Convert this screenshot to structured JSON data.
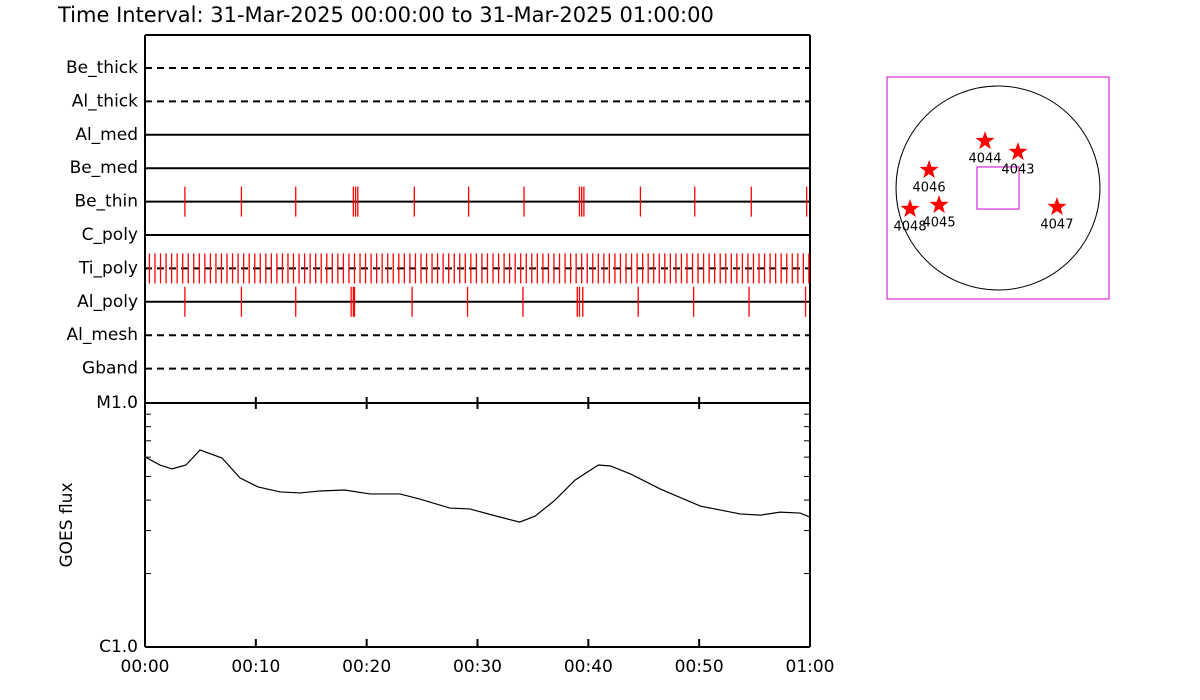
{
  "title": "Time Interval: 31-Mar-2025 00:00:00 to 31-Mar-2025 01:00:00",
  "chart_data": [
    {
      "type": "timeline",
      "categories": [
        "Be_thick",
        "Al_thick",
        "Al_med",
        "Be_med",
        "Be_thin",
        "C_poly",
        "Ti_poly",
        "Al_poly",
        "Al_mesh",
        "Gband"
      ],
      "dashed": [
        true,
        true,
        false,
        false,
        false,
        false,
        true,
        false,
        true,
        true
      ],
      "color": "#ff0000",
      "xlim": [
        0,
        60
      ],
      "events": [
        [],
        [],
        [],
        [],
        [
          3.6,
          8.7,
          13.6,
          18.8,
          19.0,
          19.2,
          24.3,
          29.2,
          34.2,
          39.2,
          39.4,
          39.6,
          44.7,
          49.6,
          54.7,
          59.7
        ],
        [],
        [
          0.4,
          0.9,
          1.4,
          1.9,
          2.4,
          2.9,
          3.4,
          3.9,
          4.4,
          4.9,
          5.4,
          5.9,
          6.4,
          6.9,
          7.4,
          7.9,
          8.4,
          8.9,
          9.4,
          9.9,
          10.4,
          10.9,
          11.4,
          11.9,
          12.4,
          12.9,
          13.4,
          13.9,
          14.4,
          14.9,
          15.4,
          15.9,
          16.4,
          16.9,
          17.4,
          17.9,
          18.4,
          18.9,
          19.4,
          19.9,
          20.4,
          20.9,
          21.4,
          21.9,
          22.4,
          22.9,
          23.4,
          23.9,
          24.4,
          24.9,
          25.4,
          25.9,
          26.4,
          26.9,
          27.4,
          27.9,
          28.4,
          28.9,
          29.4,
          29.9,
          30.4,
          30.9,
          31.4,
          31.9,
          32.4,
          32.9,
          33.4,
          33.9,
          34.4,
          34.9,
          35.4,
          35.9,
          36.4,
          36.9,
          37.4,
          37.9,
          38.4,
          38.9,
          39.4,
          39.9,
          40.4,
          40.9,
          41.4,
          41.9,
          42.4,
          42.9,
          43.4,
          43.9,
          44.4,
          44.9,
          45.4,
          45.9,
          46.4,
          46.9,
          47.4,
          47.9,
          48.4,
          48.9,
          49.4,
          49.9,
          50.4,
          50.9,
          51.4,
          51.9,
          52.4,
          52.9,
          53.4,
          53.9,
          54.4,
          54.9,
          55.4,
          55.9,
          56.4,
          56.9,
          57.4,
          57.9,
          58.4,
          58.9,
          59.4,
          59.9
        ],
        [
          3.6,
          8.7,
          13.6,
          18.6,
          18.8,
          18.9,
          24.1,
          29.1,
          34.1,
          39.0,
          39.2,
          39.5,
          44.5,
          49.5,
          54.5,
          59.6
        ],
        [],
        []
      ]
    },
    {
      "type": "line",
      "ylabel": "GOES flux",
      "log_scale": true,
      "color": "#000000",
      "x": [
        0,
        1.35,
        2.44,
        3.7,
        4.96,
        6.95,
        8.57,
        10.2,
        12.2,
        14.0,
        15.8,
        18.0,
        20.3,
        23.0,
        24.8,
        27.5,
        29.3,
        32.0,
        33.8,
        35.2,
        37.0,
        38.8,
        40.9,
        42.0,
        43.8,
        46.5,
        50.1,
        53.7,
        55.5,
        57.3,
        59.1,
        60
      ],
      "values": [
        6.01e-06,
        5.57e-06,
        5.37e-06,
        5.57e-06,
        6.42e-06,
        5.95e-06,
        4.93e-06,
        4.53e-06,
        4.32e-06,
        4.28e-06,
        4.36e-06,
        4.4e-06,
        4.24e-06,
        4.24e-06,
        4.04e-06,
        3.71e-06,
        3.68e-06,
        3.41e-06,
        3.25e-06,
        3.44e-06,
        4e-06,
        4.83e-06,
        5.57e-06,
        5.52e-06,
        5.12e-06,
        4.44e-06,
        3.78e-06,
        3.51e-06,
        3.47e-06,
        3.57e-06,
        3.54e-06,
        3.41e-06
      ],
      "xlim": [
        0,
        60
      ],
      "xticks": [
        {
          "value": 0,
          "label": "00:00"
        },
        {
          "value": 10,
          "label": "00:10"
        },
        {
          "value": 20,
          "label": "00:20"
        },
        {
          "value": 30,
          "label": "00:30"
        },
        {
          "value": 40,
          "label": "00:40"
        },
        {
          "value": 50,
          "label": "00:50"
        },
        {
          "value": 60,
          "label": "01:00"
        }
      ],
      "ylim": [
        1e-06,
        1e-05
      ],
      "yticks": [
        {
          "value": 1e-06,
          "label": "C1.0"
        },
        {
          "value": 1e-05,
          "label": "M1.0"
        }
      ],
      "minor_yticks": [
        2e-06,
        3e-06,
        4e-06,
        5e-06,
        6e-06,
        7e-06,
        8e-06,
        9e-06
      ]
    },
    {
      "type": "scatter",
      "frame_color": "#cc00cc",
      "color": "#ff0000",
      "xlim": [
        -1045,
        1045
      ],
      "ylim": [
        -1045,
        1045
      ],
      "disk_radius": 960,
      "fov": [
        -198,
        198
      ],
      "names": [
        "4044",
        "4043",
        "4046",
        "4048",
        "4045",
        "4047"
      ],
      "x": [
        -122,
        188,
        -649,
        -828,
        -555,
        555
      ],
      "y": [
        442,
        339,
        169,
        -198,
        -160,
        -179
      ]
    }
  ]
}
